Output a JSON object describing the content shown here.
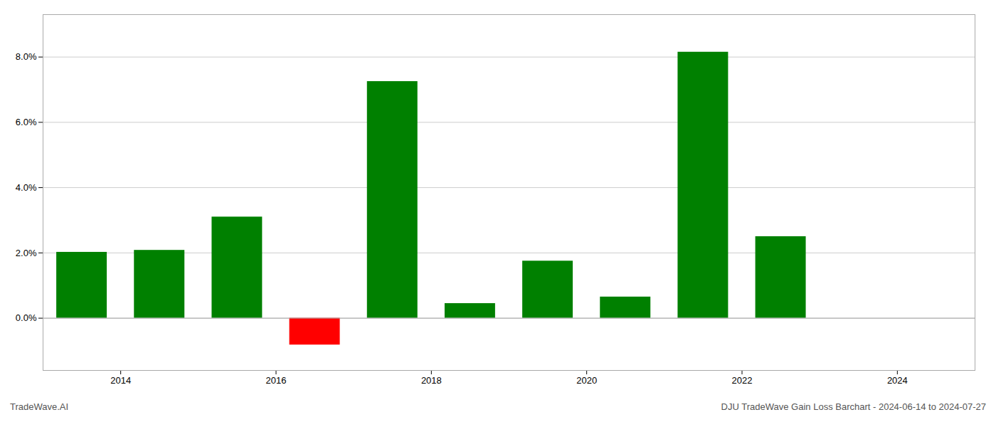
{
  "chart_data": {
    "type": "bar",
    "x": [
      2013.5,
      2014.5,
      2015.5,
      2016.5,
      2017.5,
      2018.5,
      2019.5,
      2020.5,
      2021.5,
      2022.5
    ],
    "values": [
      0.0202,
      0.0208,
      0.031,
      -0.0082,
      0.0725,
      0.0045,
      0.0175,
      0.0065,
      0.0815,
      0.025
    ],
    "colors": [
      "#008000",
      "#008000",
      "#008000",
      "#ff0000",
      "#008000",
      "#008000",
      "#008000",
      "#008000",
      "#008000",
      "#008000"
    ],
    "xlim": [
      2013.0,
      2025.0
    ],
    "ylim": [
      -0.016,
      0.093
    ],
    "xticks": [
      2014,
      2016,
      2018,
      2020,
      2022,
      2024
    ],
    "yticks": [
      {
        "value": 0.0,
        "label": "0.0%"
      },
      {
        "value": 0.02,
        "label": "2.0%"
      },
      {
        "value": 0.04,
        "label": "4.0%"
      },
      {
        "value": 0.06,
        "label": "6.0%"
      },
      {
        "value": 0.08,
        "label": "8.0%"
      }
    ],
    "grid": true,
    "annotations": [
      "TradeWave.AI",
      "DJU TradeWave Gain Loss Barchart - 2024-06-14 to 2024-07-27"
    ]
  }
}
